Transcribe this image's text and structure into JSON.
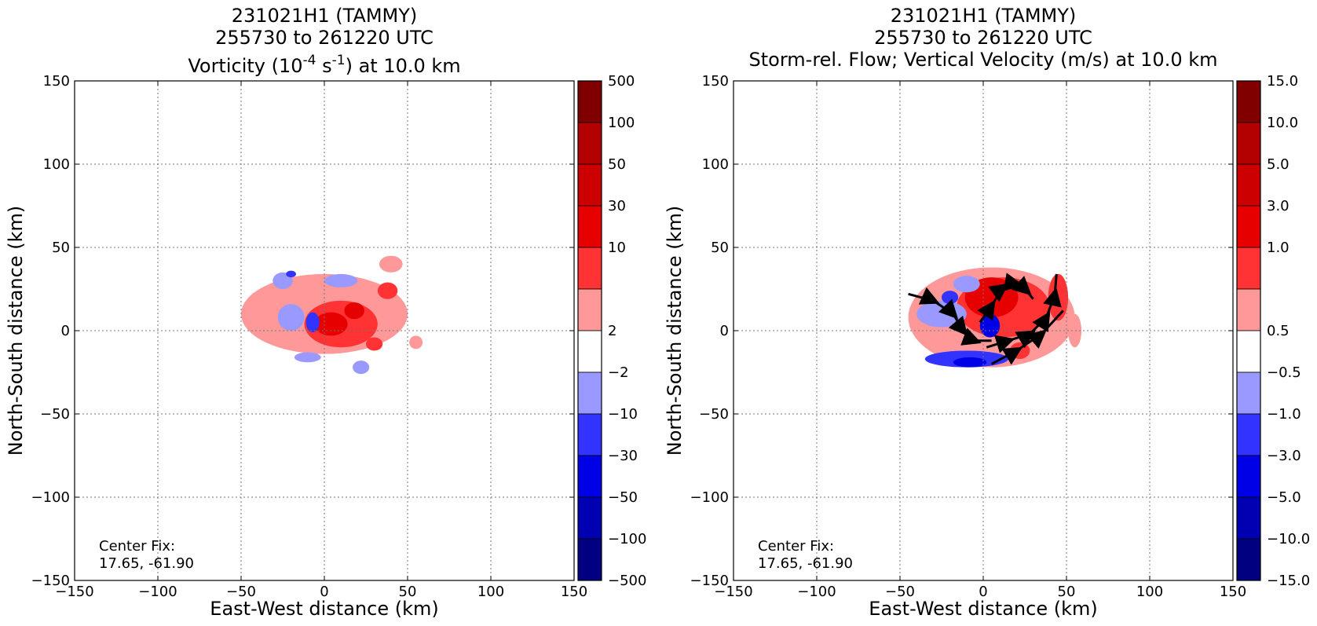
{
  "chart_data": [
    {
      "type": "heatmap",
      "title_lines": [
        "231021H1 (TAMMY)",
        "255730 to 261220 UTC"
      ],
      "title_line3": {
        "pre": "Vorticity (10",
        "sup1": "-4",
        "mid": " s",
        "sup2": "-1",
        "post": ") at 10.0 km"
      },
      "xlabel": "East-West distance (km)",
      "ylabel": "North-South distance (km)",
      "xlim": [
        -150,
        150
      ],
      "ylim": [
        -150,
        150
      ],
      "x_ticks": [
        "−150",
        "−100",
        "−50",
        "0",
        "50",
        "100",
        "150"
      ],
      "y_ticks": [
        "150",
        "100",
        "50",
        "0",
        "−50",
        "−100",
        "−150"
      ],
      "grid": true,
      "annotation_lines": [
        "Center Fix:",
        "17.65, -61.90"
      ],
      "colorbar": {
        "labels": [
          "500",
          "100",
          "50",
          "30",
          "10",
          "2",
          "−2",
          "−10",
          "−30",
          "−50",
          "−100",
          "−500"
        ],
        "colors": [
          "#800000",
          "#b30000",
          "#cc0000",
          "#e60000",
          "#ff3333",
          "#ff9999",
          "#ffffff",
          "#9999ff",
          "#3333ff",
          "#0000e6",
          "#0000b3",
          "#000080"
        ]
      },
      "field_regions": [
        {
          "level": 2,
          "cx": 0,
          "cy": 10,
          "rx": 50,
          "ry": 24
        },
        {
          "level": 2,
          "cx": 40,
          "cy": 40,
          "rx": 7,
          "ry": 5
        },
        {
          "level": 2,
          "cx": 55,
          "cy": -7,
          "rx": 4,
          "ry": 4
        },
        {
          "level": 10,
          "cx": 10,
          "cy": 4,
          "rx": 22,
          "ry": 14
        },
        {
          "level": 10,
          "cx": 38,
          "cy": 24,
          "rx": 6,
          "ry": 5
        },
        {
          "level": 10,
          "cx": 30,
          "cy": -8,
          "rx": 5,
          "ry": 4
        },
        {
          "level": 30,
          "cx": 4,
          "cy": 4,
          "rx": 10,
          "ry": 7
        },
        {
          "level": 30,
          "cx": 18,
          "cy": 12,
          "rx": 6,
          "ry": 5
        },
        {
          "level": -2,
          "cx": -20,
          "cy": 8,
          "rx": 8,
          "ry": 8
        },
        {
          "level": -2,
          "cx": -25,
          "cy": 30,
          "rx": 6,
          "ry": 5
        },
        {
          "level": -2,
          "cx": 10,
          "cy": 30,
          "rx": 10,
          "ry": 4
        },
        {
          "level": -2,
          "cx": 22,
          "cy": -22,
          "rx": 5,
          "ry": 4
        },
        {
          "level": -2,
          "cx": -10,
          "cy": -16,
          "rx": 8,
          "ry": 3
        },
        {
          "level": -10,
          "cx": -7,
          "cy": 5,
          "rx": 4,
          "ry": 6
        },
        {
          "level": -10,
          "cx": -20,
          "cy": 34,
          "rx": 3,
          "ry": 2
        }
      ]
    },
    {
      "type": "heatmap",
      "title_lines": [
        "231021H1 (TAMMY)",
        "255730 to 261220 UTC",
        "Storm-rel. Flow; Vertical Velocity (m/s) at 10.0 km"
      ],
      "xlabel": "East-West distance (km)",
      "ylabel": "North-South distance (km)",
      "xlim": [
        -150,
        150
      ],
      "ylim": [
        -150,
        150
      ],
      "x_ticks": [
        "−150",
        "−100",
        "−50",
        "0",
        "50",
        "100",
        "150"
      ],
      "y_ticks": [
        "150",
        "100",
        "50",
        "0",
        "−50",
        "−100",
        "−150"
      ],
      "grid": true,
      "annotation_lines": [
        "Center Fix:",
        "17.65, -61.90"
      ],
      "colorbar": {
        "labels": [
          "15.0",
          "10.0",
          "5.0",
          "3.0",
          "1.0",
          "0.5",
          "−0.5",
          "−1.0",
          "−3.0",
          "−5.0",
          "−10.0",
          "−15.0"
        ],
        "colors": [
          "#800000",
          "#b30000",
          "#cc0000",
          "#e60000",
          "#ff3333",
          "#ff9999",
          "#ffffff",
          "#9999ff",
          "#3333ff",
          "#0000e6",
          "#0000b3",
          "#000080"
        ]
      },
      "field_regions": [
        {
          "level": 0.5,
          "cx": 5,
          "cy": 8,
          "rx": 50,
          "ry": 30
        },
        {
          "level": 0.5,
          "cx": 55,
          "cy": 0,
          "rx": 4,
          "ry": 10
        },
        {
          "level": 1.0,
          "cx": 12,
          "cy": 14,
          "rx": 28,
          "ry": 18
        },
        {
          "level": 1.0,
          "cx": 45,
          "cy": 20,
          "rx": 6,
          "ry": 14
        },
        {
          "level": 1.0,
          "cx": 22,
          "cy": -12,
          "rx": 6,
          "ry": 5
        },
        {
          "level": 3.0,
          "cx": 5,
          "cy": 20,
          "rx": 16,
          "ry": 12
        },
        {
          "level": -0.5,
          "cx": -25,
          "cy": 10,
          "rx": 15,
          "ry": 8
        },
        {
          "level": -0.5,
          "cx": -10,
          "cy": 28,
          "rx": 8,
          "ry": 5
        },
        {
          "level": -1.0,
          "cx": -10,
          "cy": -17,
          "rx": 25,
          "ry": 5
        },
        {
          "level": -1.0,
          "cx": -20,
          "cy": 20,
          "rx": 5,
          "ry": 4
        },
        {
          "level": -3.0,
          "cx": 4,
          "cy": 3,
          "rx": 6,
          "ry": 7
        },
        {
          "level": -3.0,
          "cx": -8,
          "cy": -19,
          "rx": 10,
          "ry": 3
        }
      ],
      "streamlines": [
        [
          [
            -45,
            22
          ],
          [
            -30,
            18
          ],
          [
            -18,
            10
          ],
          [
            -12,
            0
          ],
          [
            -5,
            -6
          ],
          [
            5,
            -6
          ]
        ],
        [
          [
            -2,
            5
          ],
          [
            5,
            15
          ],
          [
            12,
            26
          ],
          [
            20,
            28
          ],
          [
            26,
            24
          ],
          [
            30,
            19
          ]
        ],
        [
          [
            2,
            -10
          ],
          [
            15,
            -6
          ],
          [
            28,
            -2
          ],
          [
            38,
            8
          ],
          [
            43,
            22
          ],
          [
            44,
            34
          ]
        ],
        [
          [
            5,
            -20
          ],
          [
            20,
            -12
          ],
          [
            35,
            -2
          ],
          [
            48,
            12
          ]
        ]
      ]
    }
  ]
}
